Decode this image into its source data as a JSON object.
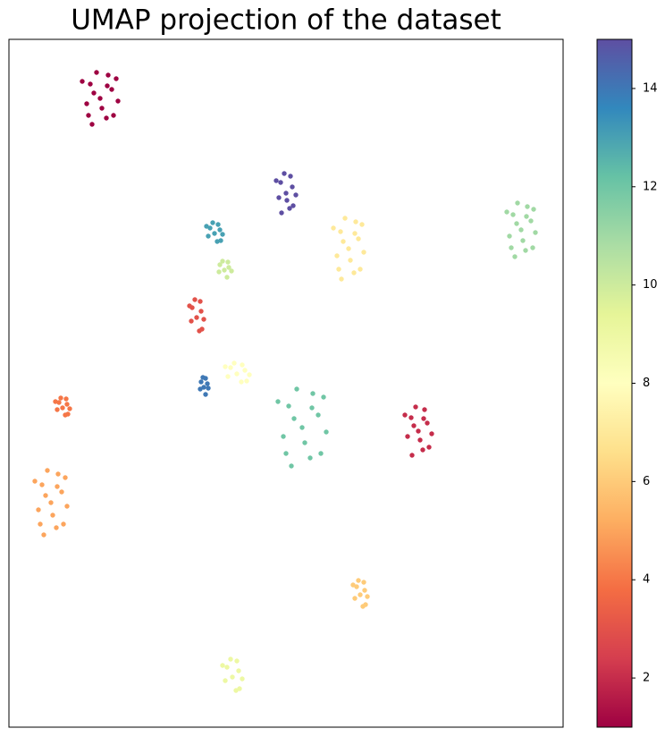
{
  "chart_data": {
    "type": "scatter",
    "title": "UMAP projection of the dataset",
    "xlim": [
      0,
      620
    ],
    "ylim": [
      0,
      769
    ],
    "colormap": "Spectral",
    "colorbar": {
      "lim": [
        1,
        15
      ],
      "ticks": [
        2,
        4,
        6,
        8,
        10,
        12,
        14
      ]
    },
    "x": [
      102,
      115,
      91,
      109,
      87,
      122,
      98,
      111,
      82,
      117,
      93,
      104,
      95,
      110,
      89,
      120,
      310,
      317,
      304,
      314,
      302,
      321,
      308,
      315,
      299,
      318,
      305,
      311,
      230,
      236,
      225,
      233,
      223,
      239,
      228,
      234,
      221,
      237,
      241,
      246,
      236,
      244,
      235,
      249,
      239,
      245,
      210,
      215,
      205,
      213,
      204,
      218,
      208,
      214,
      202,
      216,
      218,
      222,
      215,
      220,
      214,
      223,
      217,
      220,
      255,
      264,
      248,
      260,
      245,
      269,
      252,
      261,
      242,
      266,
      60,
      65,
      56,
      63,
      54,
      68,
      58,
      64,
      52,
      66,
      47,
      59,
      37,
      53,
      33,
      65,
      43,
      55,
      29,
      61,
      39,
      49,
      41,
      54,
      35,
      63,
      328,
      346,
      313,
      337,
      307,
      355,
      322,
      340,
      301,
      349,
      316,
      331,
      319,
      339,
      310,
      352,
      380,
      391,
      371,
      386,
      367,
      397,
      376,
      388,
      363,
      393,
      372,
      382,
      374,
      387,
      369,
      395,
      573,
      584,
      564,
      578,
      560,
      589,
      569,
      580,
      557,
      586,
      566,
      575,
      568,
      579,
      562,
      587,
      458,
      468,
      450,
      463,
      446,
      473,
      455,
      465,
      443,
      470,
      451,
      460,
      453,
      464,
      393,
      398,
      389,
      396,
      387,
      401,
      391,
      397,
      385,
      399,
      250,
      257,
      244,
      254,
      242,
      261,
      248,
      255,
      239,
      258
    ],
    "y": [
      703,
      713,
      719,
      681,
      697,
      700,
      732,
      729,
      722,
      684,
      674,
      692,
      709,
      717,
      684,
      725,
      597,
      604,
      609,
      580,
      592,
      595,
      619,
      616,
      611,
      583,
      575,
      589,
      552,
      556,
      558,
      543,
      549,
      551,
      564,
      562,
      560,
      544,
      511,
      514,
      517,
      503,
      509,
      510,
      521,
      520,
      458,
      465,
      469,
      443,
      454,
      456,
      478,
      476,
      471,
      445,
      380,
      384,
      386,
      372,
      378,
      379,
      391,
      390,
      395,
      399,
      402,
      386,
      392,
      394,
      407,
      405,
      403,
      387,
      357,
      361,
      363,
      349,
      355,
      356,
      368,
      367,
      364,
      350,
      251,
      263,
      271,
      223,
      243,
      247,
      287,
      283,
      275,
      227,
      215,
      237,
      259,
      269,
      227,
      279,
      335,
      349,
      359,
      301,
      325,
      330,
      378,
      373,
      364,
      306,
      292,
      318,
      345,
      357,
      306,
      369,
      535,
      546,
      554,
      508,
      527,
      531,
      569,
      565,
      558,
      512,
      501,
      522,
      543,
      552,
      512,
      562,
      556,
      566,
      573,
      533,
      549,
      553,
      586,
      582,
      576,
      536,
      526,
      544,
      563,
      571,
      536,
      579,
      331,
      340,
      346,
      310,
      325,
      328,
      358,
      355,
      349,
      313,
      304,
      321,
      337,
      345,
      148,
      153,
      157,
      135,
      144,
      146,
      164,
      162,
      159,
      137,
      56,
      63,
      67,
      41,
      52,
      54,
      76,
      74,
      69,
      43
    ],
    "c": [
      1,
      1,
      1,
      1,
      1,
      1,
      1,
      1,
      1,
      1,
      1,
      1,
      1,
      1,
      1,
      1,
      15,
      15,
      15,
      15,
      15,
      15,
      15,
      15,
      15,
      15,
      15,
      15,
      13,
      13,
      13,
      13,
      13,
      13,
      13,
      13,
      13,
      13,
      10,
      10,
      10,
      10,
      10,
      10,
      10,
      10,
      3,
      3,
      3,
      3,
      3,
      3,
      3,
      3,
      3,
      3,
      14,
      14,
      14,
      14,
      14,
      14,
      14,
      14,
      8,
      8,
      8,
      8,
      8,
      8,
      8,
      8,
      8,
      8,
      4,
      4,
      4,
      4,
      4,
      4,
      4,
      4,
      4,
      4,
      5,
      5,
      5,
      5,
      5,
      5,
      5,
      5,
      5,
      5,
      5,
      5,
      5,
      5,
      5,
      5,
      12,
      12,
      12,
      12,
      12,
      12,
      12,
      12,
      12,
      12,
      12,
      12,
      12,
      12,
      12,
      12,
      7,
      7,
      7,
      7,
      7,
      7,
      7,
      7,
      7,
      7,
      7,
      7,
      7,
      7,
      7,
      7,
      11,
      11,
      11,
      11,
      11,
      11,
      11,
      11,
      11,
      11,
      11,
      11,
      11,
      11,
      11,
      11,
      2,
      2,
      2,
      2,
      2,
      2,
      2,
      2,
      2,
      2,
      2,
      2,
      2,
      2,
      6,
      6,
      6,
      6,
      6,
      6,
      6,
      6,
      6,
      6,
      9,
      9,
      9,
      9,
      9,
      9,
      9,
      9,
      9,
      9
    ]
  }
}
